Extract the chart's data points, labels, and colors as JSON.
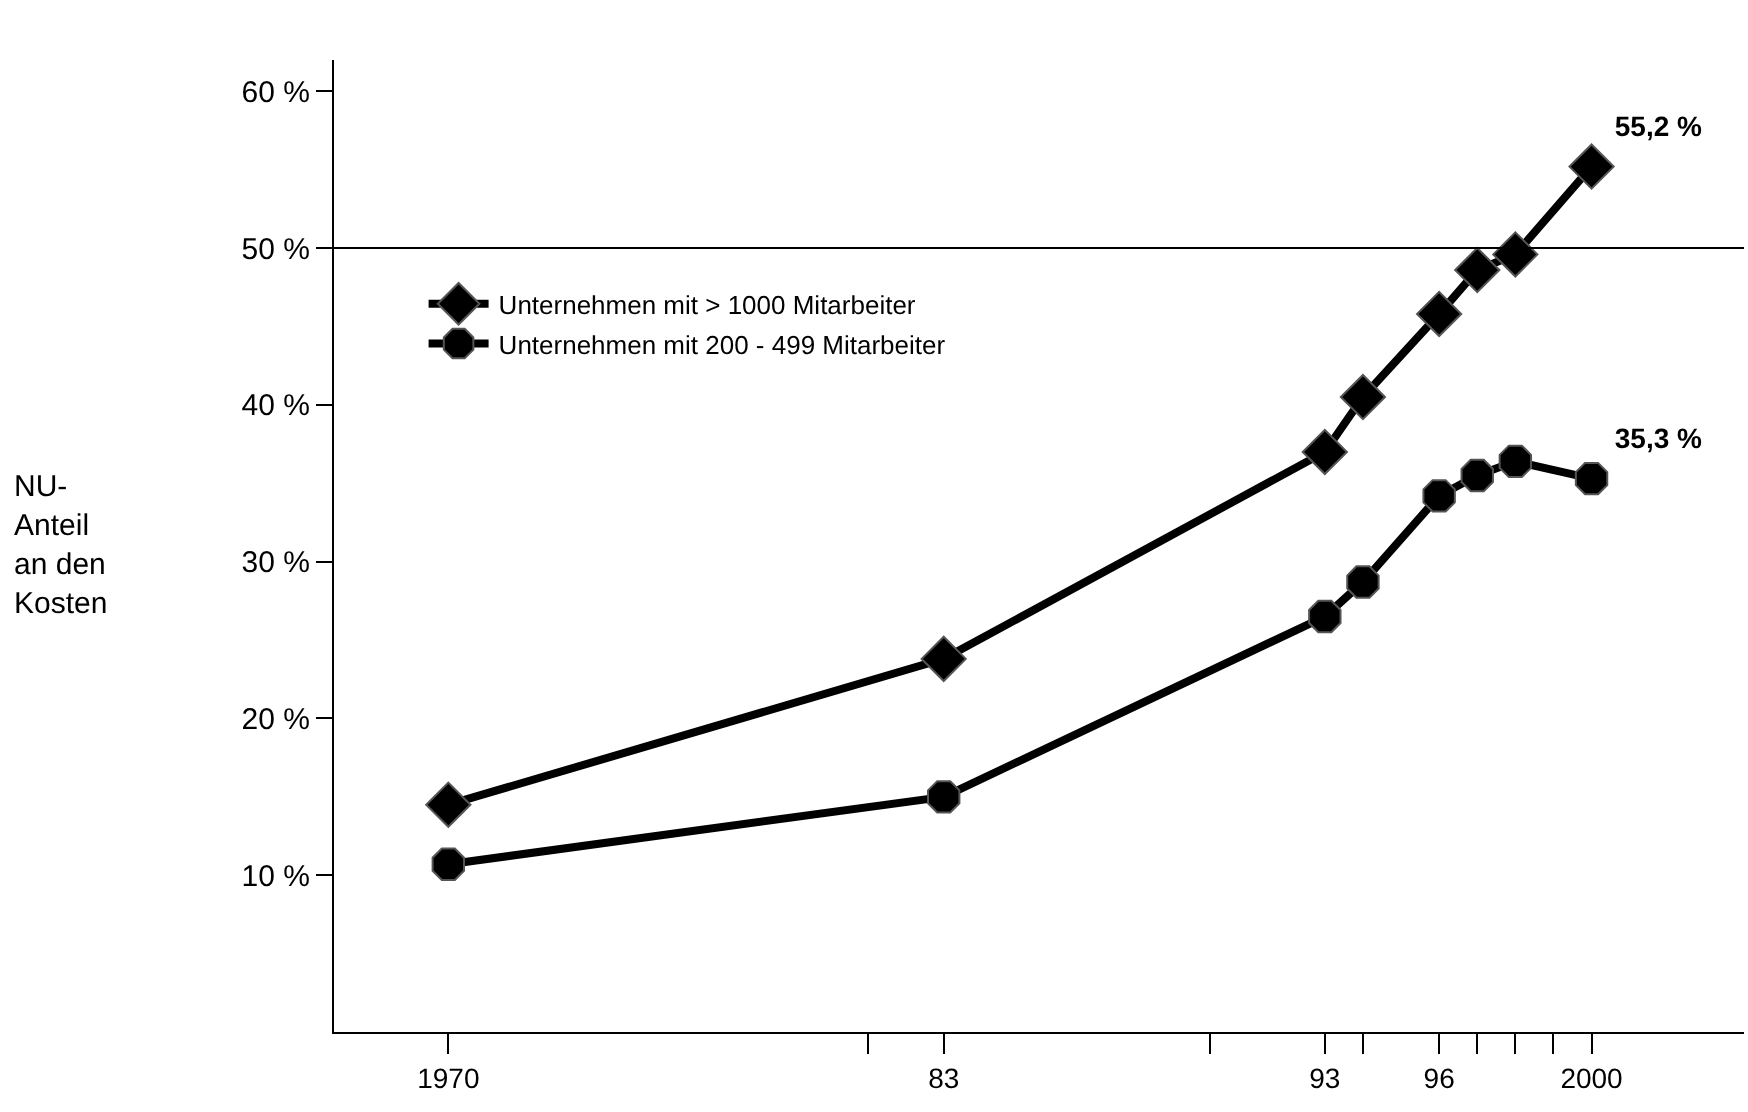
{
  "chart_data": {
    "type": "line",
    "ylabel": "NU-\nAnteil\nan den\nKosten",
    "x": [
      1970,
      1983,
      1993,
      1994,
      1996,
      1997,
      1998,
      2000
    ],
    "series": [
      {
        "name": "Unternehmen mit > 1000 Mitarbeiter",
        "color": "#000000",
        "marker": "diamond",
        "values": [
          14.5,
          23.8,
          37.0,
          40.5,
          45.8,
          48.6,
          49.6,
          55.2
        ],
        "value_labels": [
          null,
          null,
          null,
          null,
          null,
          null,
          null,
          "55,2 %"
        ]
      },
      {
        "name": "Unternehmen mit 200 - 499 Mitarbeiter",
        "color": "#000000",
        "marker": "circle",
        "values": [
          10.7,
          15.0,
          26.5,
          28.7,
          34.2,
          35.5,
          36.4,
          35.3
        ],
        "value_labels": [
          null,
          null,
          null,
          null,
          null,
          null,
          null,
          "35,3 %"
        ]
      }
    ],
    "xlim": [
      1967,
      2004
    ],
    "xticks": [
      {
        "value": 1970,
        "label": "1970"
      },
      {
        "value": 1981,
        "label": null
      },
      {
        "value": 1983,
        "label": "83"
      },
      {
        "value": 1990,
        "label": null
      },
      {
        "value": 1993,
        "label": "93"
      },
      {
        "value": 1994,
        "label": null
      },
      {
        "value": 1996,
        "label": "96"
      },
      {
        "value": 1997,
        "label": null
      },
      {
        "value": 1998,
        "label": null
      },
      {
        "value": 1999,
        "label": null
      },
      {
        "value": 2000,
        "label": "2000"
      }
    ],
    "ylim": [
      0,
      62
    ],
    "yticks": [
      {
        "value": 10,
        "label": "10 %"
      },
      {
        "value": 20,
        "label": "20 %"
      },
      {
        "value": 30,
        "label": "30 %"
      },
      {
        "value": 40,
        "label": "40 %"
      },
      {
        "value": 50,
        "label": "50 %"
      },
      {
        "value": 60,
        "label": "60 %"
      }
    ],
    "ref_lines": [
      {
        "axis": "y",
        "value": 50,
        "color": "#000000"
      }
    ],
    "legend": "top left",
    "line_style": "solid"
  }
}
